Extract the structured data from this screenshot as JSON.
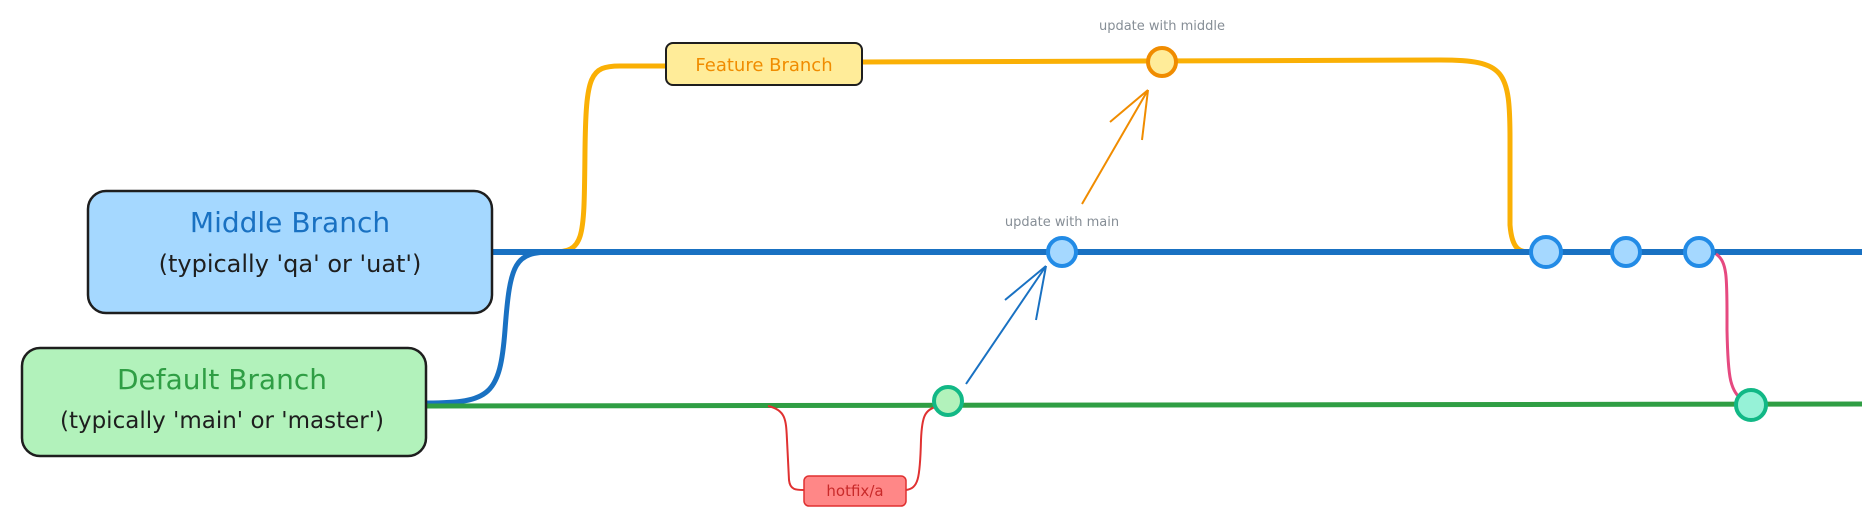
{
  "colors": {
    "middle": "#1971c2",
    "default": "#2f9e44",
    "feature": "#f59f00",
    "hotfix": "#e03131",
    "merge": "#e64980",
    "annotation": "#868e96"
  },
  "branches": {
    "middle": {
      "title": "Middle Branch",
      "subtitle": "(typically 'qa' or 'uat')"
    },
    "default": {
      "title": "Default Branch",
      "subtitle": "(typically 'main' or 'master')"
    },
    "feature": {
      "label": "Feature Branch"
    },
    "hotfix": {
      "label": "hotfix/a"
    }
  },
  "annotations": {
    "update_middle": "update with middle",
    "update_main": "update with main"
  }
}
